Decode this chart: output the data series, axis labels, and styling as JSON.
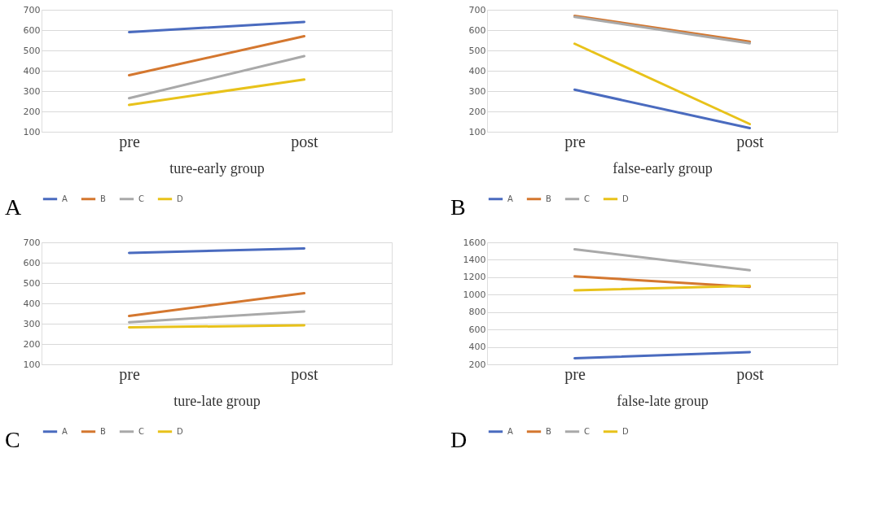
{
  "chart_data": [
    {
      "type": "line",
      "xlabel": "ture-early group",
      "categories": [
        "pre",
        "post"
      ],
      "ylim": [
        100,
        700
      ],
      "yticks": [
        100,
        200,
        300,
        400,
        500,
        600,
        700
      ],
      "grid": "y",
      "legend": "bottom",
      "marker": "none",
      "line_style": "solid",
      "annotations": [
        "A"
      ],
      "series": [
        {
          "name": "A",
          "color": "#4a6bbf",
          "values": [
            590,
            640
          ]
        },
        {
          "name": "B",
          "color": "#d4772f",
          "values": [
            378,
            570
          ]
        },
        {
          "name": "C",
          "color": "#a9a9a9",
          "values": [
            265,
            472
          ]
        },
        {
          "name": "D",
          "color": "#e8c21a",
          "values": [
            232,
            357
          ]
        }
      ]
    },
    {
      "type": "line",
      "xlabel": "false-early group",
      "categories": [
        "pre",
        "post"
      ],
      "ylim": [
        100,
        700
      ],
      "yticks": [
        100,
        200,
        300,
        400,
        500,
        600,
        700
      ],
      "grid": "y",
      "legend": "bottom",
      "marker": "none",
      "line_style": "solid",
      "annotations": [
        "B"
      ],
      "series": [
        {
          "name": "A",
          "color": "#4a6bbf",
          "values": [
            307,
            118
          ]
        },
        {
          "name": "B",
          "color": "#d4772f",
          "values": [
            670,
            543
          ]
        },
        {
          "name": "C",
          "color": "#a9a9a9",
          "values": [
            665,
            535
          ]
        },
        {
          "name": "D",
          "color": "#e8c21a",
          "values": [
            533,
            138
          ]
        }
      ]
    },
    {
      "type": "line",
      "xlabel": "ture-late group",
      "categories": [
        "pre",
        "post"
      ],
      "ylim": [
        100,
        700
      ],
      "yticks": [
        100,
        200,
        300,
        400,
        500,
        600,
        700
      ],
      "grid": "y",
      "legend": "bottom",
      "marker": "none",
      "line_style": "solid",
      "annotations": [
        "C"
      ],
      "series": [
        {
          "name": "A",
          "color": "#4a6bbf",
          "values": [
            648,
            670
          ]
        },
        {
          "name": "B",
          "color": "#d4772f",
          "values": [
            338,
            450
          ]
        },
        {
          "name": "C",
          "color": "#a9a9a9",
          "values": [
            307,
            360
          ]
        },
        {
          "name": "D",
          "color": "#e8c21a",
          "values": [
            282,
            292
          ]
        }
      ]
    },
    {
      "type": "line",
      "xlabel": "false-late group",
      "categories": [
        "pre",
        "post"
      ],
      "ylim": [
        200,
        1600
      ],
      "yticks": [
        200,
        400,
        600,
        800,
        1000,
        1200,
        1400,
        1600
      ],
      "grid": "y",
      "legend": "bottom",
      "marker": "none",
      "line_style": "solid",
      "annotations": [
        "D"
      ],
      "series": [
        {
          "name": "A",
          "color": "#4a6bbf",
          "values": [
            270,
            340
          ]
        },
        {
          "name": "B",
          "color": "#d4772f",
          "values": [
            1210,
            1090
          ]
        },
        {
          "name": "C",
          "color": "#a9a9a9",
          "values": [
            1520,
            1280
          ]
        },
        {
          "name": "D",
          "color": "#e8c21a",
          "values": [
            1050,
            1100
          ]
        }
      ]
    }
  ]
}
